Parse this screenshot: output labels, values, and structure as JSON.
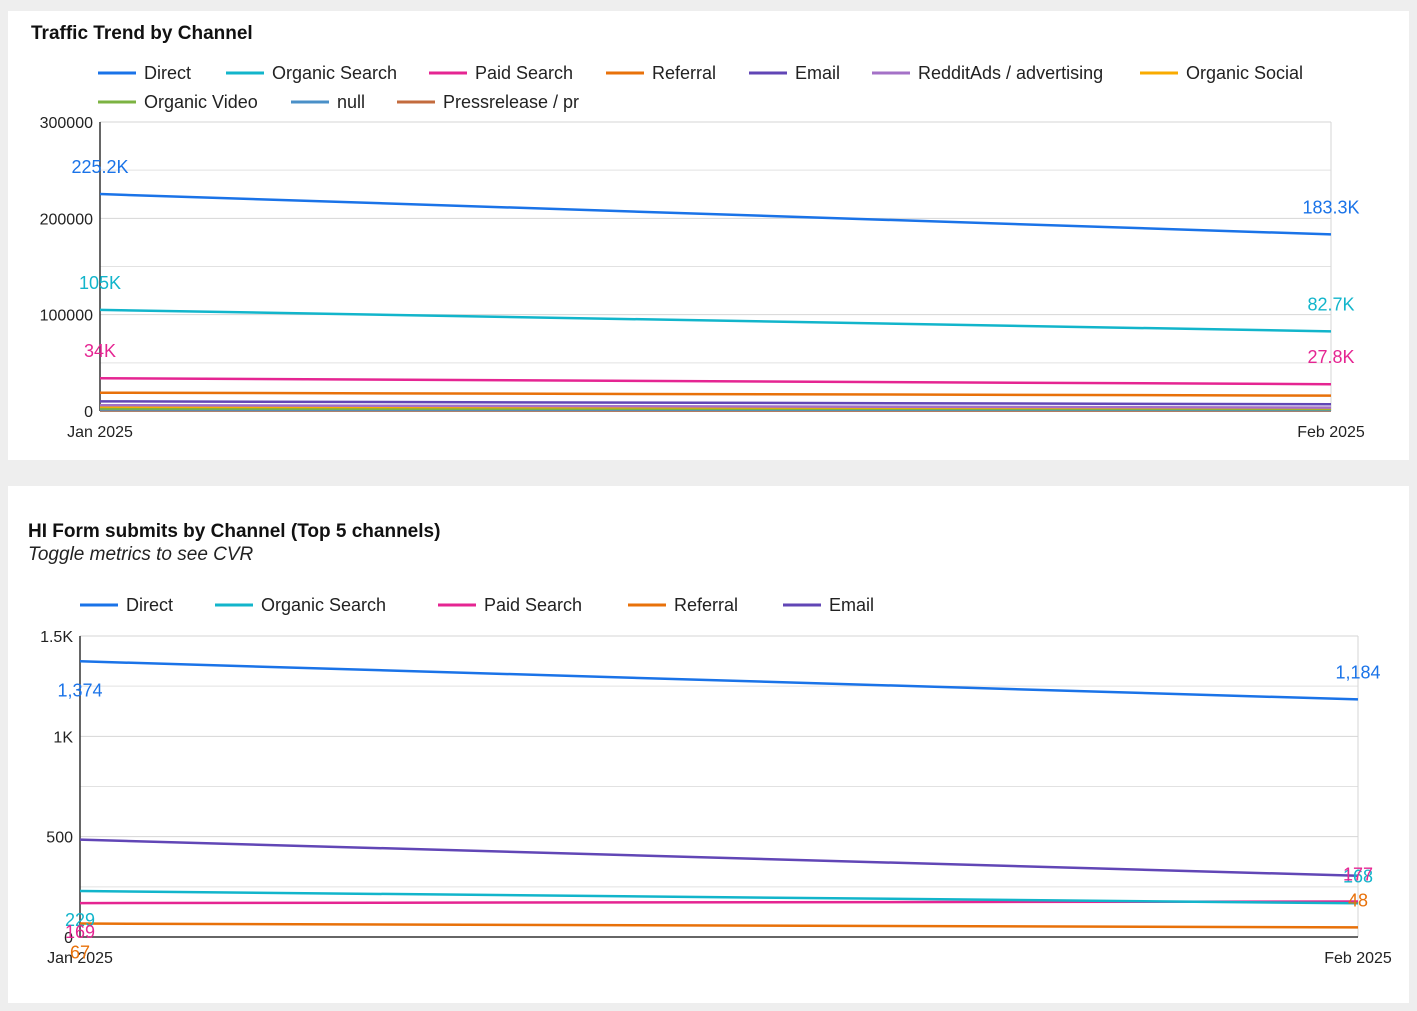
{
  "chart_data": [
    {
      "type": "line",
      "title": "Traffic Trend by Channel",
      "subtitle": "",
      "x": [
        "Jan 2025",
        "Feb 2025"
      ],
      "ylim": [
        0,
        300000
      ],
      "yticks": [
        "0",
        "100000",
        "200000",
        "300000"
      ],
      "ytick_values": [
        0,
        100000,
        200000,
        300000
      ],
      "grid": true,
      "legend_position": "top",
      "series": [
        {
          "name": "Direct",
          "color": "#1a73e8",
          "values": [
            225200,
            183300
          ],
          "labels": [
            "225.2K",
            "183.3K"
          ]
        },
        {
          "name": "Organic Search",
          "color": "#12b5cb",
          "values": [
            105000,
            82700
          ],
          "labels": [
            "105K",
            "82.7K"
          ]
        },
        {
          "name": "Paid Search",
          "color": "#e52592",
          "values": [
            34000,
            27800
          ],
          "labels": [
            "34K",
            "27.8K"
          ]
        },
        {
          "name": "Referral",
          "color": "#e8710a",
          "values": [
            19000,
            16000
          ],
          "labels": []
        },
        {
          "name": "Email",
          "color": "#6146b6",
          "values": [
            10000,
            7000
          ],
          "labels": []
        },
        {
          "name": "RedditAds / advertising",
          "color": "#a471c7",
          "values": [
            6000,
            3500
          ],
          "labels": []
        },
        {
          "name": "Organic Social",
          "color": "#f9ab00",
          "values": [
            4500,
            3000
          ],
          "labels": []
        },
        {
          "name": "Organic Video",
          "color": "#7cb342",
          "values": [
            2500,
            2000
          ],
          "labels": []
        },
        {
          "name": "null",
          "color": "#4a90c8",
          "values": [
            1500,
            1200
          ],
          "labels": []
        },
        {
          "name": "Pressrelease / pr",
          "color": "#c36b3e",
          "values": [
            800,
            600
          ],
          "labels": []
        }
      ]
    },
    {
      "type": "line",
      "title": "HI Form submits by Channel (Top 5 channels)",
      "subtitle": "Toggle metrics to see CVR",
      "x": [
        "Jan 2025",
        "Feb 2025"
      ],
      "ylim": [
        0,
        1500
      ],
      "yticks": [
        "0",
        "500",
        "1K",
        "1.5K"
      ],
      "ytick_values": [
        0,
        500,
        1000,
        1500
      ],
      "grid": true,
      "legend_position": "top",
      "series": [
        {
          "name": "Direct",
          "color": "#1a73e8",
          "values": [
            1374,
            1184
          ],
          "labels": [
            "1,374",
            "1,184"
          ]
        },
        {
          "name": "Organic Search",
          "color": "#12b5cb",
          "values": [
            229,
            168
          ],
          "labels": [
            "229",
            "168"
          ]
        },
        {
          "name": "Paid Search",
          "color": "#e52592",
          "values": [
            169,
            177
          ],
          "labels": [
            "169",
            "177"
          ]
        },
        {
          "name": "Referral",
          "color": "#e8710a",
          "values": [
            67,
            48
          ],
          "labels": [
            "67",
            "48"
          ]
        },
        {
          "name": "Email",
          "color": "#6146b6",
          "values": [
            485,
            305
          ],
          "labels": []
        }
      ]
    }
  ]
}
